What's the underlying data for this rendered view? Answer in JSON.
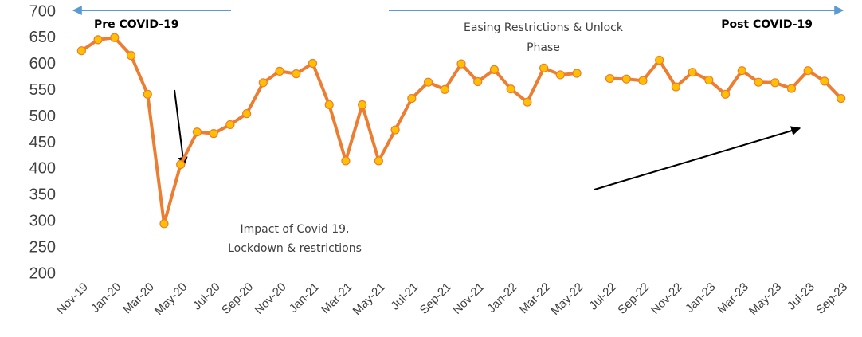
{
  "chart_data": {
    "type": "line",
    "categories": [
      "Nov-19",
      null,
      "Jan-20",
      null,
      "Mar-20",
      null,
      "May-20",
      null,
      "Jul-20",
      null,
      "Sep-20",
      null,
      "Nov-20",
      null,
      "Jan-21",
      null,
      "Mar-21",
      null,
      "May-21",
      null,
      "Jul-21",
      null,
      "Sep-21",
      null,
      "Nov-21",
      null,
      "Jan-22",
      null,
      "Mar-22",
      null,
      "May-22",
      null,
      "Jul-22",
      null,
      "Sep-22",
      null,
      "Nov-22",
      null,
      "Jan-23",
      null,
      "Mar-23",
      null,
      "May-23",
      null,
      "Jul-23",
      null,
      "Sep-23"
    ],
    "series": [
      {
        "color": "#ed7d31",
        "marker_color": "#ffc000",
        "values": [
          626,
          647,
          651,
          617,
          543,
          296,
          409,
          471,
          468,
          485,
          506,
          565,
          587,
          582,
          602,
          523,
          416,
          523,
          416,
          475,
          535,
          566,
          552,
          601,
          567,
          590,
          553,
          528,
          593,
          580,
          583,
          null,
          573,
          572,
          569,
          608,
          557,
          585,
          570,
          543,
          588,
          566,
          565,
          554,
          588,
          568,
          535
        ]
      }
    ],
    "ylim": [
      200,
      700
    ],
    "yticks": [
      200,
      250,
      300,
      350,
      400,
      450,
      500,
      550,
      600,
      650,
      700
    ],
    "annotations": {
      "pre": "Pre COVID-19",
      "post": "Post COVID-19",
      "easing": [
        "Easing Restrictions & Unlock",
        "Phase"
      ],
      "impact": [
        "Impact of Covid 19,",
        "Lockdown & restrictions"
      ]
    }
  }
}
